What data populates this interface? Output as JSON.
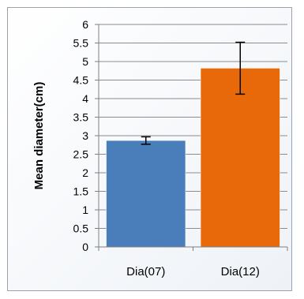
{
  "chart_data": {
    "type": "bar",
    "categories": [
      "Dia(07)",
      "Dia(12)"
    ],
    "values": [
      2.87,
      4.82
    ],
    "errors": [
      0.1,
      0.7
    ],
    "bar_colors": [
      "#4a7ebb",
      "#e8690a"
    ],
    "ylabel": "Mean diameter(cm)",
    "xlabel": "",
    "title": "",
    "ylim": [
      0,
      6
    ],
    "yticks": [
      "0",
      "0.5",
      "1",
      "1.5",
      "2",
      "2.5",
      "3",
      "3.5",
      "4",
      "4.5",
      "5",
      "5.5",
      "6"
    ],
    "grid": true,
    "legend": "none"
  }
}
